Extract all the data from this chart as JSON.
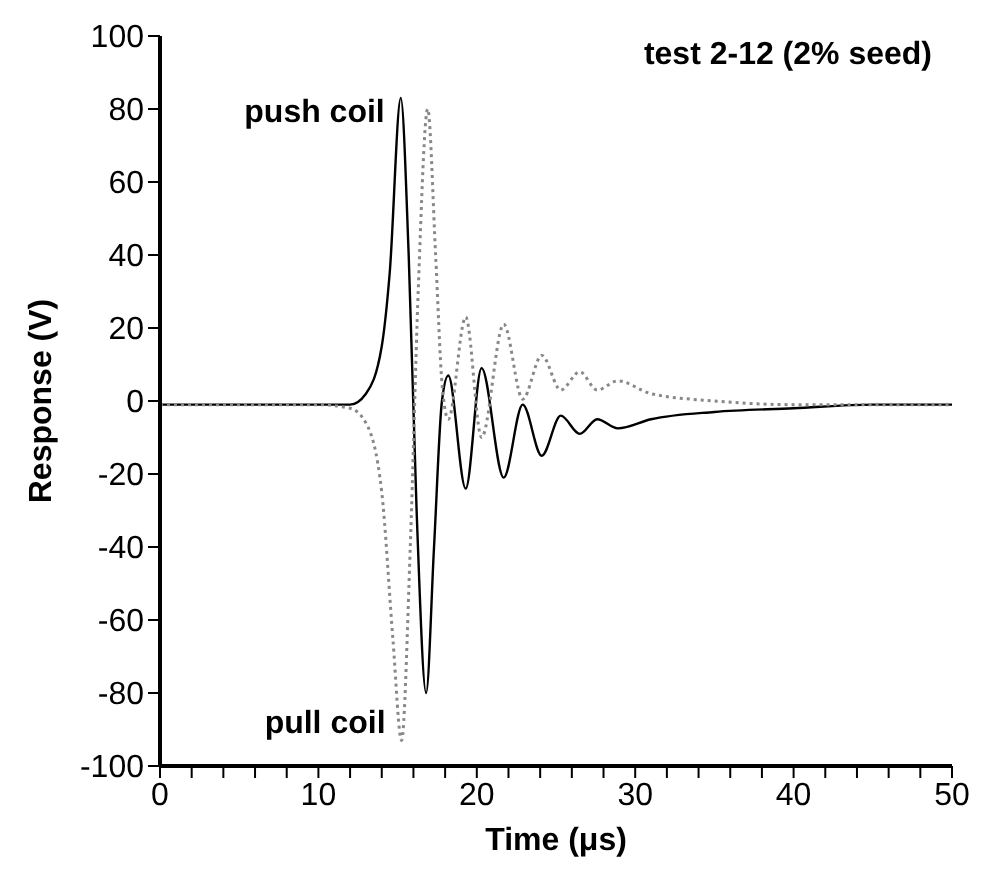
{
  "chart_data": {
    "type": "line",
    "title": "test 2-12 (2% seed)",
    "xlabel": "Time (μs)",
    "ylabel": "Response (V)",
    "xlim": [
      0,
      50
    ],
    "ylim": [
      -100,
      100
    ],
    "xticks": [
      0,
      {
        "value": 2,
        "label": null
      },
      {
        "value": 4,
        "label": null
      },
      {
        "value": 6,
        "label": null
      },
      {
        "value": 8,
        "label": null
      },
      10,
      {
        "value": 12,
        "label": null
      },
      {
        "value": 14,
        "label": null
      },
      {
        "value": 16,
        "label": null
      },
      {
        "value": 18,
        "label": null
      },
      20,
      {
        "value": 22,
        "label": null
      },
      {
        "value": 24,
        "label": null
      },
      {
        "value": 26,
        "label": null
      },
      {
        "value": 28,
        "label": null
      },
      30,
      {
        "value": 32,
        "label": null
      },
      {
        "value": 34,
        "label": null
      },
      {
        "value": 36,
        "label": null
      },
      {
        "value": 38,
        "label": null
      },
      40,
      {
        "value": 42,
        "label": null
      },
      {
        "value": 44,
        "label": null
      },
      {
        "value": 46,
        "label": null
      },
      {
        "value": 48,
        "label": null
      },
      50
    ],
    "yticks": [
      -100,
      -80,
      -60,
      -40,
      -20,
      0,
      20,
      40,
      60,
      80,
      100
    ],
    "grid": false,
    "legend": false,
    "marker": "none",
    "annotations": [
      "push coil",
      "pull coil"
    ],
    "series": [
      {
        "color": "#000000",
        "line_style": "solid",
        "x": [
          0,
          5,
          10,
          12,
          13,
          14,
          14.5,
          15.2,
          15.7,
          16.2,
          16.8,
          17.3,
          17.8,
          18.2,
          19.3,
          20.3,
          21.7,
          22.9,
          24.1,
          25.3,
          26.5,
          27.6,
          28.9,
          31,
          35,
          40,
          45,
          50
        ],
        "values": [
          -1,
          -1,
          -1,
          -1,
          2,
          15,
          35,
          83,
          40,
          -30,
          -80,
          -40,
          0,
          7,
          -24,
          9,
          -21,
          -1,
          -15,
          -4,
          -9,
          -5,
          -7.5,
          -5,
          -3,
          -2,
          -1,
          -1
        ]
      },
      {
        "color": "#888888",
        "line_style": "dotted",
        "x": [
          0,
          5,
          10,
          12,
          13,
          14,
          14.7,
          15.25,
          15.8,
          16.3,
          16.9,
          17.4,
          17.8,
          18.2,
          19.3,
          20.3,
          21.7,
          22.9,
          24.1,
          25.3,
          26.5,
          27.6,
          28.9,
          31,
          35,
          40,
          45,
          50
        ],
        "values": [
          -1,
          -1,
          -1,
          -2,
          -6,
          -25,
          -65,
          -93,
          -40,
          30,
          80,
          40,
          5,
          -5,
          23,
          -10,
          21,
          0.5,
          12.5,
          3,
          8,
          3,
          5.5,
          2,
          0,
          -1,
          -1,
          -1
        ]
      }
    ]
  }
}
